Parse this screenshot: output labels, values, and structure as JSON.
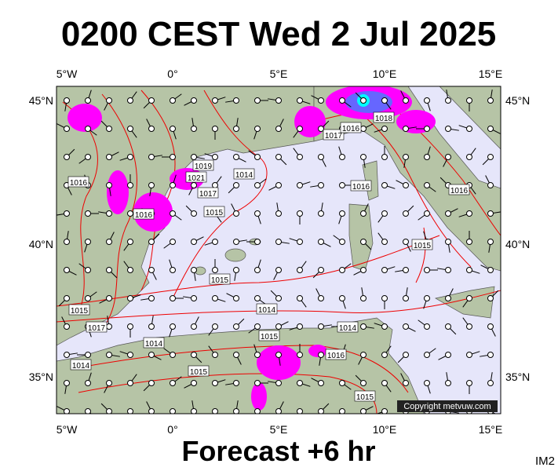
{
  "title": "0200 CEST Wed 2 Jul 2025",
  "footer": "Forecast +6 hr",
  "corner_label": "IM2",
  "copyright": "Copyright metvuw.com",
  "axes": {
    "top": [
      "5°W",
      "0°",
      "5°E",
      "10°E",
      "15°E"
    ],
    "bottom": [
      "5°W",
      "0°",
      "5°E",
      "10°E",
      "15°E"
    ],
    "left": [
      "45°N",
      "40°N",
      "35°N"
    ],
    "right": [
      "45°N",
      "40°N",
      "35°N"
    ]
  },
  "isobar_labels": [
    "1016",
    "1016",
    "1015",
    "1015",
    "1014",
    "1015",
    "1014",
    "1015",
    "1014",
    "1017",
    "1015",
    "1018",
    "1017",
    "1016",
    "1019",
    "1021",
    "1017",
    "1014",
    "1016",
    "1015",
    "1016",
    "1016",
    "1015",
    "1014"
  ]
}
